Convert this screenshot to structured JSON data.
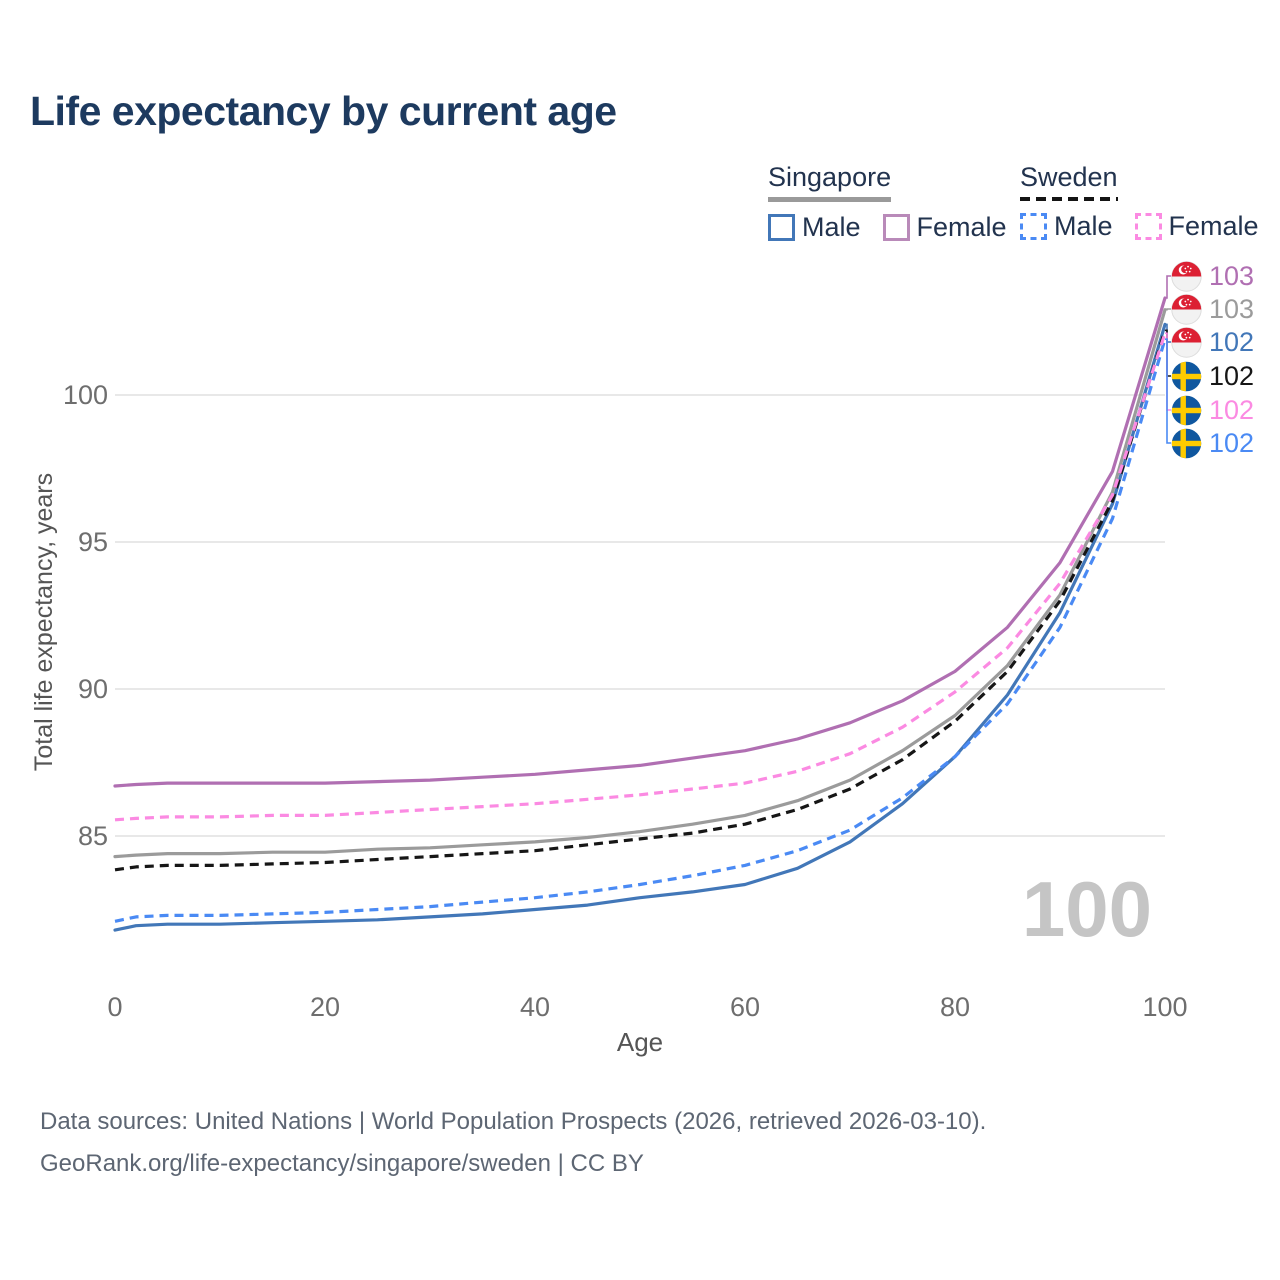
{
  "title": "Life expectancy by current age",
  "watermark": "100",
  "legend": {
    "groups": [
      {
        "country": "Singapore",
        "underline_style": "solid",
        "underline_color": "#9a9a9a",
        "items": [
          {
            "label": "Male",
            "color": "#4277b8",
            "dash": false
          },
          {
            "label": "Female",
            "color": "#b98ab9",
            "dash": false
          }
        ]
      },
      {
        "country": "Sweden",
        "underline_style": "dashed",
        "underline_color": "#141414",
        "items": [
          {
            "label": "Male",
            "color": "#4a8af4",
            "dash": true
          },
          {
            "label": "Female",
            "color": "#fb8ae2",
            "dash": true
          }
        ]
      }
    ]
  },
  "y_axis": {
    "title": "Total life expectancy, years",
    "ticks": [
      85,
      90,
      95,
      100
    ]
  },
  "x_axis": {
    "title": "Age",
    "ticks": [
      0,
      20,
      40,
      60,
      80,
      100
    ]
  },
  "end_labels": [
    {
      "value": "103",
      "flag": "singapore",
      "color": "#b06fb2"
    },
    {
      "value": "103",
      "flag": "singapore",
      "color": "#9b9b9b"
    },
    {
      "value": "102",
      "flag": "singapore",
      "color": "#4277b8"
    },
    {
      "value": "102",
      "flag": "sweden",
      "color": "#161616"
    },
    {
      "value": "102",
      "flag": "sweden",
      "color": "#fb8ae2"
    },
    {
      "value": "102",
      "flag": "sweden",
      "color": "#4a8af4"
    }
  ],
  "flags": {
    "singapore": {
      "red": "#dc2033",
      "white": "#f2f2f2"
    },
    "sweden": {
      "blue": "#0f579f",
      "yellow": "#fecb00"
    }
  },
  "chart_data": {
    "type": "line",
    "title": "Life expectancy by current age",
    "xlabel": "Age",
    "ylabel": "Total life expectancy, years",
    "xlim": [
      0,
      100
    ],
    "ylim": [
      79.8,
      104.9
    ],
    "grid": "horizontal",
    "legend_position": "top-right",
    "x": [
      0,
      2,
      5,
      10,
      15,
      20,
      25,
      30,
      35,
      40,
      45,
      50,
      55,
      60,
      65,
      70,
      75,
      80,
      85,
      90,
      95,
      100
    ],
    "series": [
      {
        "name": "Singapore Female",
        "color": "#b06fb2",
        "dash": false,
        "values": [
          86.7,
          86.75,
          86.8,
          86.8,
          86.8,
          86.8,
          86.85,
          86.9,
          87.0,
          87.1,
          87.25,
          87.4,
          87.65,
          87.9,
          88.3,
          88.85,
          89.6,
          90.6,
          92.1,
          94.3,
          97.4,
          103.3
        ],
        "end_value_label": "103"
      },
      {
        "name": "Singapore Total",
        "color": "#9b9b9b",
        "dash": false,
        "values": [
          84.3,
          84.35,
          84.4,
          84.4,
          84.45,
          84.45,
          84.55,
          84.6,
          84.7,
          84.8,
          84.95,
          85.15,
          85.4,
          85.7,
          86.2,
          86.9,
          87.9,
          89.1,
          90.8,
          93.2,
          96.7,
          102.9
        ],
        "end_value_label": "103"
      },
      {
        "name": "Singapore Male",
        "color": "#4277b8",
        "dash": false,
        "values": [
          81.8,
          81.95,
          82.0,
          82.0,
          82.05,
          82.1,
          82.15,
          82.25,
          82.35,
          82.5,
          82.65,
          82.9,
          83.1,
          83.35,
          83.9,
          84.8,
          86.1,
          87.7,
          89.8,
          92.6,
          96.3,
          102.4
        ],
        "end_value_label": "102"
      },
      {
        "name": "Sweden Total",
        "color": "#161616",
        "dash": true,
        "values": [
          83.85,
          83.95,
          84.0,
          84.0,
          84.05,
          84.1,
          84.2,
          84.3,
          84.4,
          84.5,
          84.7,
          84.9,
          85.1,
          85.4,
          85.9,
          86.6,
          87.6,
          88.9,
          90.6,
          93.0,
          96.4,
          102.2
        ],
        "end_value_label": "102"
      },
      {
        "name": "Sweden Female",
        "color": "#fb8ae2",
        "dash": true,
        "values": [
          85.55,
          85.6,
          85.65,
          85.65,
          85.7,
          85.7,
          85.8,
          85.9,
          86.0,
          86.1,
          86.25,
          86.4,
          86.6,
          86.8,
          87.2,
          87.8,
          88.7,
          89.9,
          91.4,
          93.6,
          96.6,
          102.1
        ],
        "end_value_label": "102"
      },
      {
        "name": "Sweden Male",
        "color": "#4a8af4",
        "dash": true,
        "values": [
          82.1,
          82.25,
          82.3,
          82.3,
          82.35,
          82.4,
          82.5,
          82.6,
          82.75,
          82.9,
          83.1,
          83.35,
          83.65,
          84.0,
          84.5,
          85.2,
          86.3,
          87.7,
          89.5,
          92.1,
          95.8,
          101.9
        ],
        "end_value_label": "102"
      }
    ]
  },
  "footer": {
    "line1": "Data sources: United Nations | World Population Prospects (2026, retrieved 2026-03-10).",
    "line2": "GeoRank.org/life-expectancy/singapore/sweden | CC BY"
  }
}
